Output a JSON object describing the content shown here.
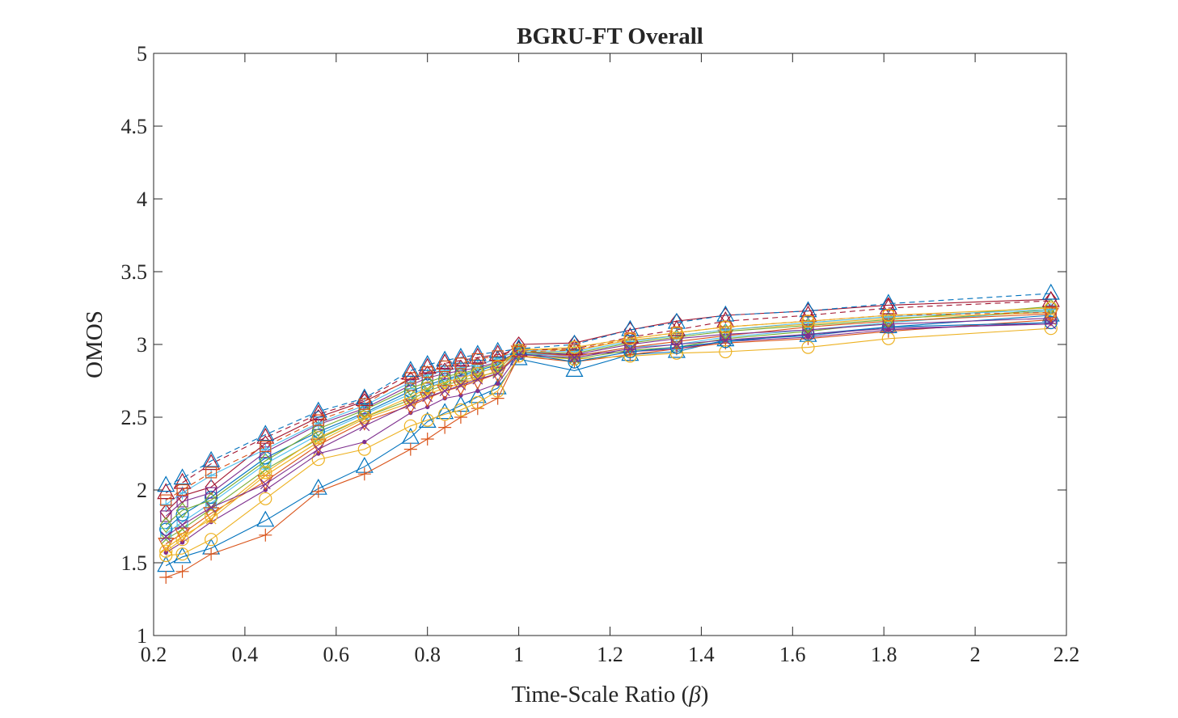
{
  "chart_data": {
    "type": "line",
    "title": "BGRU-FT Overall",
    "xlabel": "Time-Scale Ratio (β)",
    "xlabel_prefix": "Time-Scale Ratio (",
    "xlabel_symbol": "β",
    "xlabel_suffix": ")",
    "ylabel": "OMOS",
    "xlim": [
      0.2,
      2.2
    ],
    "ylim": [
      1,
      5
    ],
    "xticks": [
      "0.2",
      "0.4",
      "0.6",
      "0.8",
      "1",
      "1.2",
      "1.4",
      "1.6",
      "1.8",
      "2",
      "2.2"
    ],
    "yticks": [
      "1",
      "1.5",
      "2",
      "2.5",
      "3",
      "3.5",
      "4",
      "4.5",
      "5"
    ],
    "grid": false,
    "legend": "none",
    "x": [
      0.227,
      0.263,
      0.326,
      0.445,
      0.561,
      0.662,
      0.763,
      0.8,
      0.838,
      0.873,
      0.91,
      0.954,
      1.0,
      1.122,
      1.244,
      1.346,
      1.453,
      1.634,
      1.81,
      2.166
    ],
    "series": [
      {
        "color": "#0072BD",
        "marker": "triangle",
        "dash": false,
        "values": [
          1.48,
          1.54,
          1.6,
          1.79,
          2.01,
          2.16,
          2.36,
          2.47,
          2.53,
          2.58,
          2.64,
          2.7,
          2.9,
          2.82,
          2.93,
          2.95,
          3.03,
          3.06,
          3.12,
          3.2
        ]
      },
      {
        "color": "#D95319",
        "marker": "plus",
        "dash": false,
        "values": [
          1.4,
          1.44,
          1.56,
          1.69,
          1.99,
          2.11,
          2.28,
          2.35,
          2.43,
          2.5,
          2.56,
          2.63,
          2.92,
          2.88,
          2.93,
          2.97,
          3.01,
          3.04,
          3.09,
          3.17
        ]
      },
      {
        "color": "#EDB120",
        "marker": "circle",
        "dash": false,
        "values": [
          1.55,
          1.56,
          1.66,
          1.94,
          2.21,
          2.28,
          2.44,
          2.48,
          2.52,
          2.55,
          2.6,
          2.68,
          2.92,
          2.9,
          2.92,
          2.94,
          2.95,
          2.98,
          3.04,
          3.11
        ]
      },
      {
        "color": "#7E2F8E",
        "marker": "point",
        "dash": false,
        "values": [
          1.57,
          1.64,
          1.78,
          2.0,
          2.25,
          2.33,
          2.53,
          2.57,
          2.63,
          2.65,
          2.68,
          2.73,
          2.93,
          2.93,
          2.95,
          2.97,
          3.02,
          3.05,
          3.1,
          3.15
        ]
      },
      {
        "color": "#77AC30",
        "marker": "x",
        "dash": false,
        "values": [
          1.66,
          1.73,
          1.87,
          2.14,
          2.35,
          2.5,
          2.62,
          2.68,
          2.72,
          2.75,
          2.78,
          2.81,
          2.94,
          2.9,
          2.96,
          2.98,
          3.04,
          3.09,
          3.15,
          3.24
        ]
      },
      {
        "color": "#4DBEEE",
        "marker": "square",
        "dash": false,
        "values": [
          1.7,
          1.78,
          1.91,
          2.18,
          2.38,
          2.52,
          2.66,
          2.7,
          2.75,
          2.78,
          2.81,
          2.84,
          2.94,
          2.92,
          2.98,
          3.0,
          3.05,
          3.1,
          3.15,
          3.23
        ]
      },
      {
        "color": "#A2142F",
        "marker": "diamond",
        "dash": false,
        "values": [
          1.85,
          1.96,
          2.02,
          2.32,
          2.5,
          2.61,
          2.76,
          2.8,
          2.82,
          2.84,
          2.86,
          2.9,
          3.0,
          3.01,
          3.1,
          3.16,
          3.2,
          3.23,
          3.27,
          3.31
        ]
      },
      {
        "color": "#0072BD",
        "marker": "circle",
        "dash": false,
        "values": [
          1.73,
          1.83,
          1.95,
          2.22,
          2.4,
          2.53,
          2.68,
          2.72,
          2.76,
          2.79,
          2.82,
          2.86,
          2.94,
          2.88,
          2.95,
          2.98,
          3.02,
          3.07,
          3.12,
          3.15
        ]
      },
      {
        "color": "#D95319",
        "marker": "triangle-down",
        "dash": false,
        "values": [
          1.63,
          1.7,
          1.84,
          2.06,
          2.31,
          2.47,
          2.58,
          2.63,
          2.68,
          2.71,
          2.75,
          2.8,
          2.95,
          2.92,
          2.98,
          3.02,
          3.06,
          3.12,
          3.16,
          3.21
        ]
      },
      {
        "color": "#EDB120",
        "marker": "x",
        "dash": false,
        "values": [
          1.6,
          1.68,
          1.8,
          2.1,
          2.33,
          2.49,
          2.6,
          2.66,
          2.7,
          2.73,
          2.77,
          2.82,
          2.97,
          2.96,
          3.03,
          3.06,
          3.1,
          3.14,
          3.18,
          3.22
        ]
      },
      {
        "color": "#7E2F8E",
        "marker": "square",
        "dash": false,
        "values": [
          1.82,
          1.92,
          1.98,
          2.26,
          2.45,
          2.56,
          2.72,
          2.77,
          2.8,
          2.82,
          2.84,
          2.88,
          2.95,
          2.93,
          3.0,
          3.04,
          3.07,
          3.1,
          3.14,
          3.18
        ]
      },
      {
        "color": "#77AC30",
        "marker": "diamond",
        "dash": false,
        "values": [
          1.76,
          1.86,
          1.93,
          2.2,
          2.42,
          2.55,
          2.7,
          2.74,
          2.78,
          2.8,
          2.83,
          2.87,
          2.95,
          2.94,
          3.01,
          3.05,
          3.09,
          3.13,
          3.17,
          3.26
        ]
      },
      {
        "color": "#4DBEEE",
        "marker": "plus",
        "dash": false,
        "values": [
          1.9,
          1.98,
          2.1,
          2.28,
          2.46,
          2.58,
          2.74,
          2.79,
          2.82,
          2.84,
          2.86,
          2.9,
          2.96,
          2.95,
          3.02,
          3.06,
          3.1,
          3.15,
          3.19,
          3.24
        ]
      },
      {
        "color": "#A2142F",
        "marker": "triangle",
        "dash": true,
        "values": [
          1.98,
          2.05,
          2.18,
          2.36,
          2.52,
          2.62,
          2.8,
          2.84,
          2.87,
          2.89,
          2.91,
          2.93,
          2.96,
          2.97,
          3.05,
          3.1,
          3.16,
          3.2,
          3.25,
          3.3
        ]
      },
      {
        "color": "#0072BD",
        "marker": "triangle",
        "dash": true,
        "values": [
          2.03,
          2.08,
          2.2,
          2.38,
          2.54,
          2.63,
          2.82,
          2.86,
          2.89,
          2.91,
          2.93,
          2.95,
          2.97,
          3.0,
          3.1,
          3.15,
          3.2,
          3.23,
          3.28,
          3.35
        ]
      },
      {
        "color": "#D95319",
        "marker": "square",
        "dash": true,
        "values": [
          1.93,
          2.0,
          2.12,
          2.3,
          2.48,
          2.59,
          2.77,
          2.81,
          2.85,
          2.87,
          2.9,
          2.92,
          2.95,
          2.96,
          3.04,
          3.08,
          3.12,
          3.16,
          3.2,
          3.22
        ]
      },
      {
        "color": "#EDB120",
        "marker": "circle",
        "dash": false,
        "values": [
          1.58,
          1.66,
          1.82,
          2.12,
          2.36,
          2.5,
          2.64,
          2.7,
          2.74,
          2.77,
          2.8,
          2.85,
          2.96,
          2.98,
          3.04,
          3.08,
          3.12,
          3.16,
          3.2,
          3.25
        ]
      },
      {
        "color": "#7E2F8E",
        "marker": "x",
        "dash": false,
        "values": [
          1.68,
          1.76,
          1.88,
          2.04,
          2.28,
          2.44,
          2.59,
          2.64,
          2.68,
          2.72,
          2.76,
          2.8,
          2.93,
          2.91,
          2.97,
          3.0,
          3.03,
          3.07,
          3.11,
          3.14
        ]
      }
    ]
  }
}
